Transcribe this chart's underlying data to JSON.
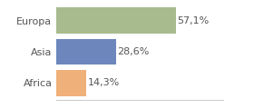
{
  "categories": [
    "Europa",
    "Asia",
    "Africa"
  ],
  "values": [
    57.1,
    28.6,
    14.3
  ],
  "labels": [
    "57,1%",
    "28,6%",
    "14,3%"
  ],
  "bar_colors": [
    "#a8bb8e",
    "#6d87bc",
    "#f0b07a"
  ],
  "background_color": "#ffffff",
  "xlim": [
    0,
    80
  ],
  "label_fontsize": 8,
  "tick_fontsize": 8,
  "bar_height": 0.82
}
